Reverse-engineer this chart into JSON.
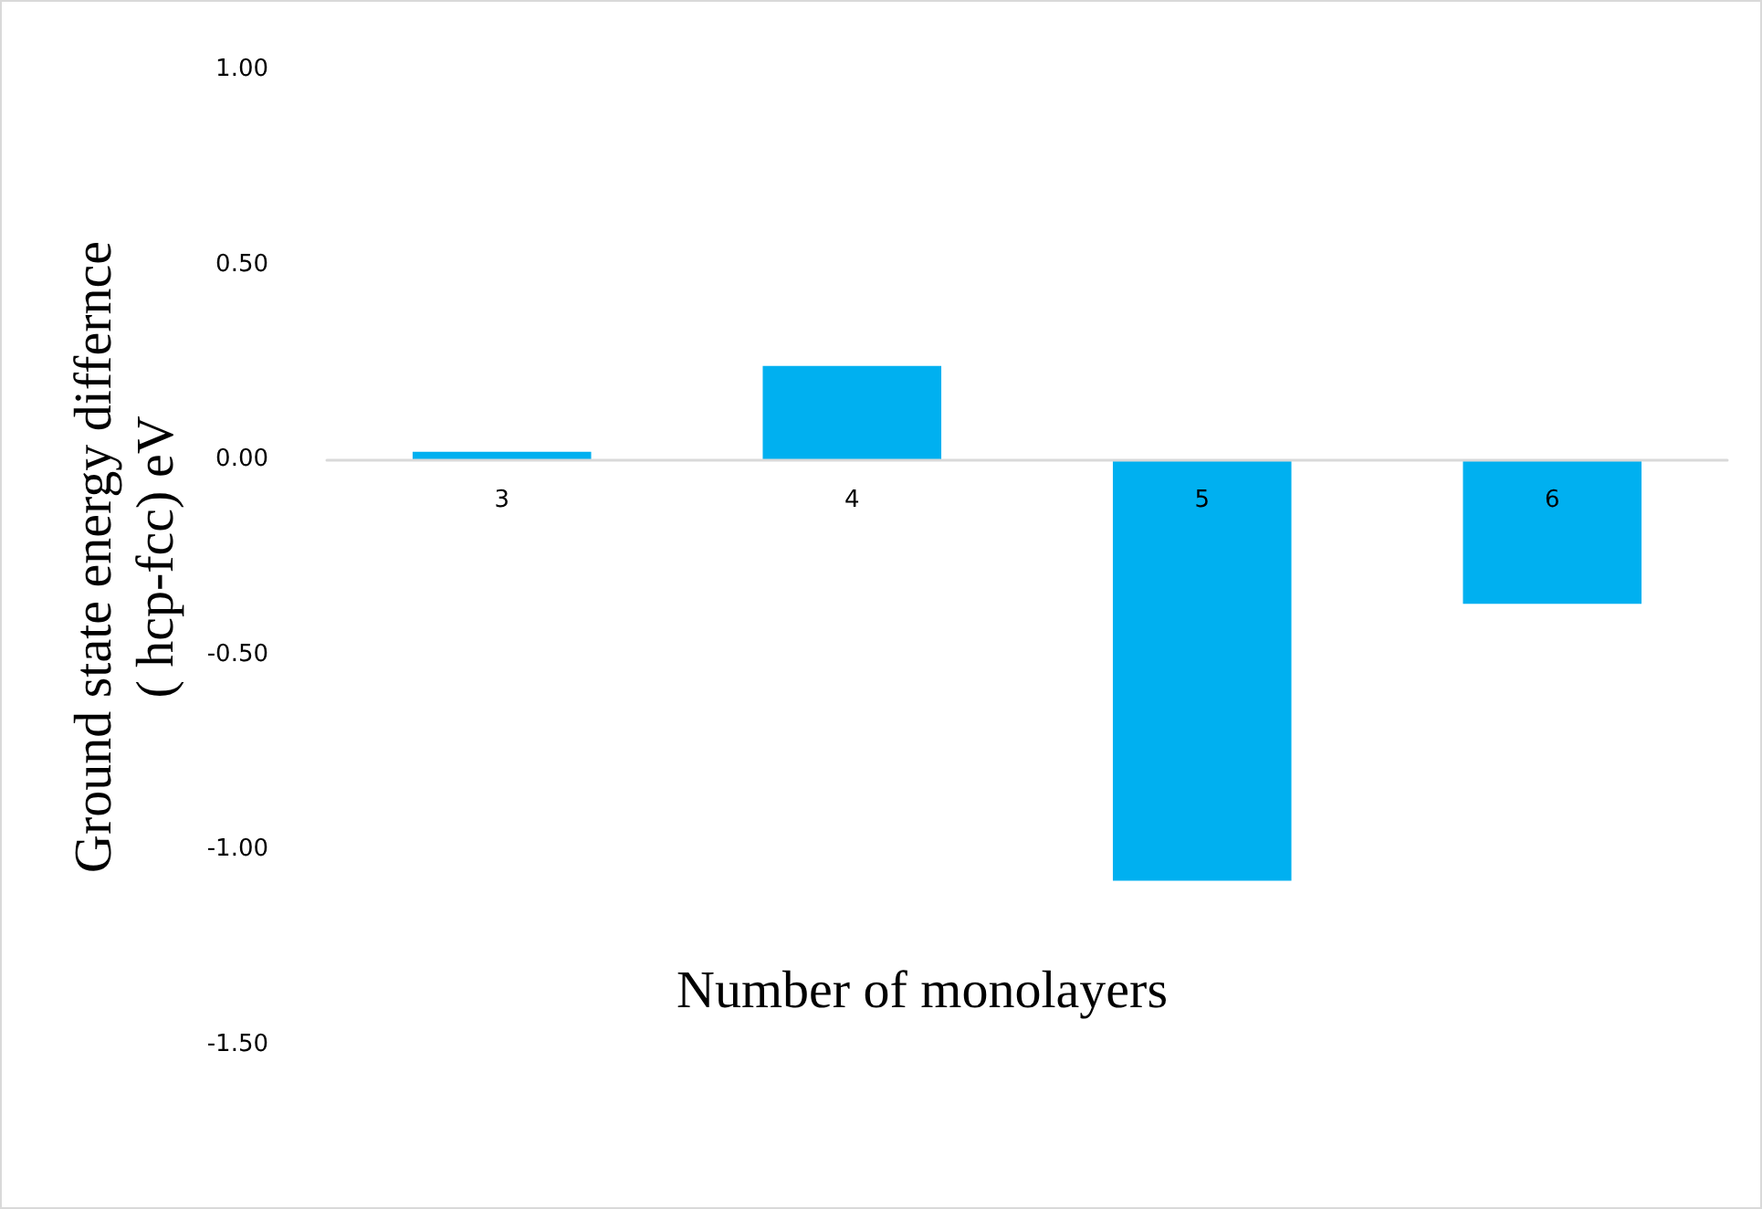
{
  "chart_data": {
    "type": "bar",
    "xlabel": "Number of monolayers",
    "ylabel": "Ground state energy differnce\n( hcp-fcc) eV",
    "categories": [
      "3",
      "4",
      "5",
      "6"
    ],
    "values": [
      0.02,
      0.24,
      -1.08,
      -0.37
    ],
    "color": "#00b0f0",
    "ylim": [
      -1.5,
      1
    ],
    "yticks": [
      {
        "value": -1.5,
        "label": "-1.50"
      },
      {
        "value": -1,
        "label": "-1.00"
      },
      {
        "value": -0.5,
        "label": "-0.50"
      },
      {
        "value": 0,
        "label": "0.00"
      },
      {
        "value": 0.5,
        "label": "0.50"
      },
      {
        "value": 1,
        "label": "1.00"
      }
    ],
    "grid": false
  }
}
